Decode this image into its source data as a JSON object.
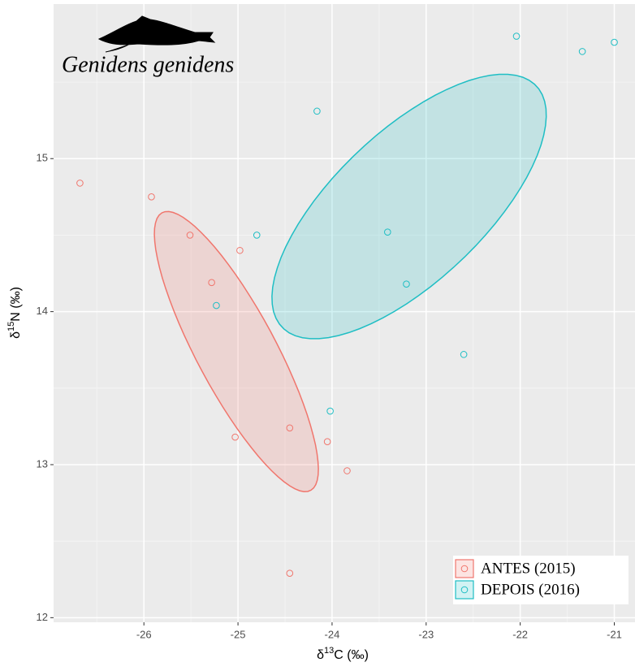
{
  "chart_data": {
    "type": "scatter",
    "title": "Genidens genidens",
    "x_label": {
      "symbol": "δ",
      "sup": "13",
      "rest": "C (‰)"
    },
    "y_label": {
      "symbol": "δ",
      "sup": "15",
      "rest": "N (‰)"
    },
    "xlim": [
      -26.96,
      -20.78
    ],
    "ylim": [
      11.97,
      16.01
    ],
    "xticks": [
      -26,
      -25,
      -24,
      -23,
      -22,
      -21
    ],
    "yticks": [
      12,
      13,
      14,
      15
    ],
    "grid": true,
    "legend": "bottom-right",
    "series": [
      {
        "name": "ANTES (2015)",
        "color": "#f0766d",
        "x": [
          -26.68,
          -25.92,
          -25.51,
          -24.98,
          -25.28,
          -25.03,
          -24.45,
          -24.05,
          -23.84,
          -24.45
        ],
        "values": [
          14.84,
          14.75,
          14.5,
          14.4,
          14.19,
          13.18,
          13.24,
          13.15,
          12.96,
          12.29
        ],
        "ellipse": {
          "center": [
            -25.017,
            13.739
          ],
          "a": [
            -0.793,
            0.906
          ],
          "b": [
            0.362,
            0.132
          ]
        }
      },
      {
        "name": "DEPOIS (2016)",
        "color": "#1fbec4",
        "x": [
          -22.04,
          -21.34,
          -21.0,
          -24.16,
          -24.8,
          -23.41,
          -23.21,
          -25.23,
          -22.6,
          -24.02
        ],
        "values": [
          15.8,
          15.7,
          15.76,
          15.31,
          14.5,
          14.52,
          14.18,
          14.04,
          13.72,
          13.35
        ],
        "ellipse": {
          "center": [
            -23.181,
            14.687
          ],
          "a": [
            1.379,
            0.768
          ],
          "b": [
            0.474,
            -0.397
          ]
        }
      }
    ]
  }
}
